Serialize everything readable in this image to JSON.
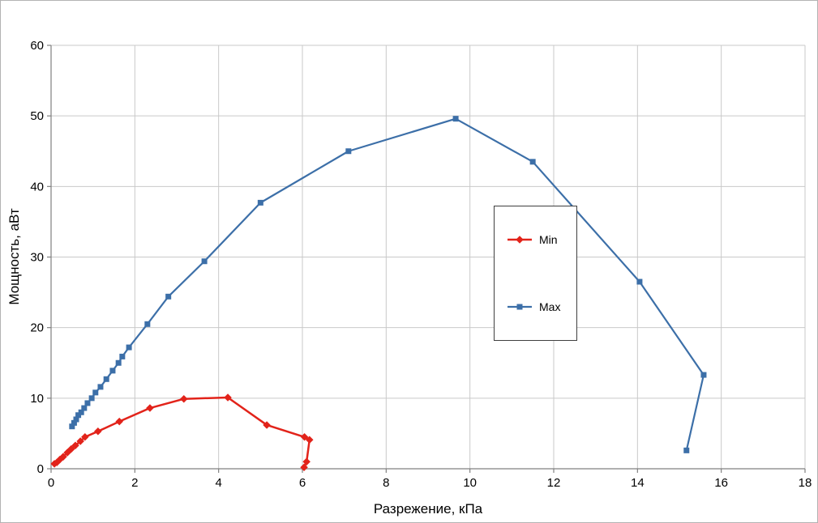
{
  "chart_data": {
    "type": "line",
    "title": "",
    "xlabel": "Разрежение, кПа",
    "ylabel": "Мощность, аВт",
    "xlim": [
      0,
      18
    ],
    "ylim": [
      0,
      60
    ],
    "x_ticks": [
      0,
      2,
      4,
      6,
      8,
      10,
      12,
      14,
      16,
      18
    ],
    "y_ticks": [
      0,
      10,
      20,
      30,
      40,
      50,
      60
    ],
    "grid": true,
    "legend_position": "center-right",
    "colors": {
      "grid": "#c9c9c9",
      "axis": "#808080",
      "tick_label": "#000000",
      "legend_border": "#3f3f3f",
      "background": "#ffffff"
    },
    "series": [
      {
        "name": "Min",
        "color": "#e2231a",
        "marker": "diamond",
        "marker_size": 7,
        "line_width": 2.5,
        "points": [
          [
            0.08,
            0.7
          ],
          [
            0.14,
            0.9
          ],
          [
            0.21,
            1.3
          ],
          [
            0.29,
            1.7
          ],
          [
            0.39,
            2.3
          ],
          [
            0.48,
            2.8
          ],
          [
            0.58,
            3.3
          ],
          [
            0.7,
            3.9
          ],
          [
            0.81,
            4.5
          ],
          [
            1.12,
            5.3
          ],
          [
            1.63,
            6.7
          ],
          [
            2.36,
            8.6
          ],
          [
            3.17,
            9.9
          ],
          [
            4.22,
            10.1
          ],
          [
            5.15,
            6.2
          ],
          [
            6.05,
            4.5
          ],
          [
            6.17,
            4.1
          ],
          [
            6.1,
            1.0
          ],
          [
            6.04,
            0.2
          ]
        ]
      },
      {
        "name": "Max",
        "color": "#3c6fa8",
        "marker": "square",
        "marker_size": 7,
        "line_width": 2.2,
        "points": [
          [
            0.5,
            6.0
          ],
          [
            0.55,
            6.5
          ],
          [
            0.6,
            7.0
          ],
          [
            0.65,
            7.6
          ],
          [
            0.72,
            8.0
          ],
          [
            0.79,
            8.6
          ],
          [
            0.87,
            9.3
          ],
          [
            0.97,
            10.0
          ],
          [
            1.06,
            10.8
          ],
          [
            1.18,
            11.6
          ],
          [
            1.32,
            12.7
          ],
          [
            1.47,
            13.9
          ],
          [
            1.61,
            15.0
          ],
          [
            1.7,
            15.9
          ],
          [
            1.86,
            17.2
          ],
          [
            2.3,
            20.5
          ],
          [
            2.8,
            24.4
          ],
          [
            3.66,
            29.4
          ],
          [
            5.0,
            37.7
          ],
          [
            7.1,
            45.0
          ],
          [
            9.66,
            49.6
          ],
          [
            11.5,
            43.5
          ],
          [
            14.05,
            26.5
          ],
          [
            15.58,
            13.3
          ],
          [
            15.17,
            2.6
          ]
        ]
      }
    ]
  }
}
